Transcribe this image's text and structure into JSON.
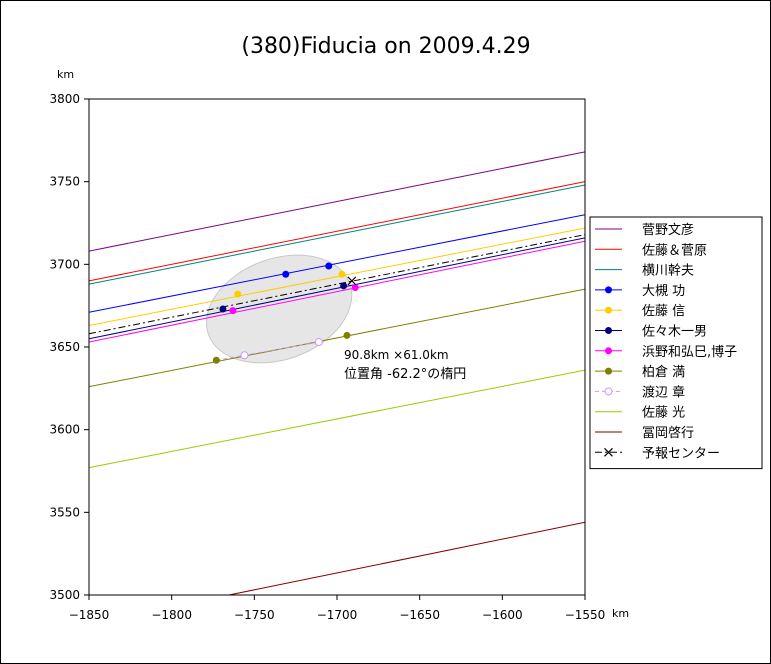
{
  "chart_data": {
    "type": "line",
    "title": "(380)Fiducia on 2009.4.29",
    "xlabel": "km",
    "ylabel": "km",
    "xlim": [
      -1850,
      -1550
    ],
    "ylim": [
      3500,
      3800
    ],
    "xticks": [
      -1850,
      -1800,
      -1750,
      -1700,
      -1650,
      -1600,
      -1550
    ],
    "yticks": [
      3500,
      3550,
      3600,
      3650,
      3700,
      3750,
      3800
    ],
    "grid": false,
    "legend_position": "right",
    "annotation": {
      "line1": "90.8km ×61.0km",
      "line2": "位置角 -62.2°の楕円"
    },
    "ellipse": {
      "cx": -1735,
      "cy": 3673,
      "a_km": 45.4,
      "b_km": 30.5,
      "angle_deg": 20,
      "color": "#e6e6e6"
    },
    "series": [
      {
        "name": "菅野文彦",
        "color": "#800080",
        "style": "solid",
        "x": [
          -1850,
          -1550
        ],
        "y": [
          3708,
          3768
        ]
      },
      {
        "name": "佐藤＆菅原",
        "color": "#ff0000",
        "style": "solid",
        "x": [
          -1850,
          -1550
        ],
        "y": [
          3690,
          3750
        ]
      },
      {
        "name": "横川幹夫",
        "color": "#008080",
        "style": "solid",
        "x": [
          -1850,
          -1550
        ],
        "y": [
          3688,
          3748
        ]
      },
      {
        "name": "大槻 功",
        "color": "#0000ff",
        "style": "solid",
        "x": [
          -1850,
          -1550
        ],
        "y": [
          3671,
          3730
        ],
        "points": [
          [
            -1731,
            3694
          ],
          [
            -1705,
            3699
          ]
        ]
      },
      {
        "name": "佐藤 信",
        "color": "#ffcc00",
        "style": "solid",
        "x": [
          -1850,
          -1550
        ],
        "y": [
          3663,
          3722
        ],
        "points": [
          [
            -1760,
            3682
          ],
          [
            -1697,
            3694
          ]
        ]
      },
      {
        "name": "佐々木一男",
        "color": "#000080",
        "style": "solid",
        "x": [
          -1850,
          -1550
        ],
        "y": [
          3655,
          3716
        ],
        "points": [
          [
            -1769,
            3673
          ],
          [
            -1696,
            3687
          ]
        ]
      },
      {
        "name": "浜野和弘巳,博子",
        "color": "#ff00ff",
        "style": "solid",
        "x": [
          -1850,
          -1550
        ],
        "y": [
          3653,
          3714
        ],
        "points": [
          [
            -1763,
            3672
          ],
          [
            -1689,
            3686
          ]
        ]
      },
      {
        "name": "柏倉 満",
        "color": "#808000",
        "style": "solid",
        "x": [
          -1850,
          -1550
        ],
        "y": [
          3626,
          3685
        ],
        "points": [
          [
            -1773,
            3642
          ],
          [
            -1694,
            3657
          ]
        ]
      },
      {
        "name": "渡辺 章",
        "color": "#cc99ff",
        "style": "dashed",
        "x": [
          -1773,
          -1711
        ],
        "y": [
          3642,
          3653
        ],
        "points": [
          [
            -1756,
            3645
          ],
          [
            -1711,
            3653
          ]
        ]
      },
      {
        "name": "佐藤 光",
        "color": "#99cc00",
        "style": "solid",
        "x": [
          -1850,
          -1550
        ],
        "y": [
          3577,
          3636
        ]
      },
      {
        "name": "冨岡啓行",
        "color": "#800000",
        "style": "solid",
        "x": [
          -1780,
          -1550
        ],
        "y": [
          3497,
          3544
        ]
      },
      {
        "name": "予報センター",
        "color": "#000000",
        "style": "dashdot",
        "x": [
          -1850,
          -1550
        ],
        "y": [
          3658,
          3718
        ],
        "points": [
          [
            -1691,
            3690
          ]
        ]
      }
    ]
  }
}
